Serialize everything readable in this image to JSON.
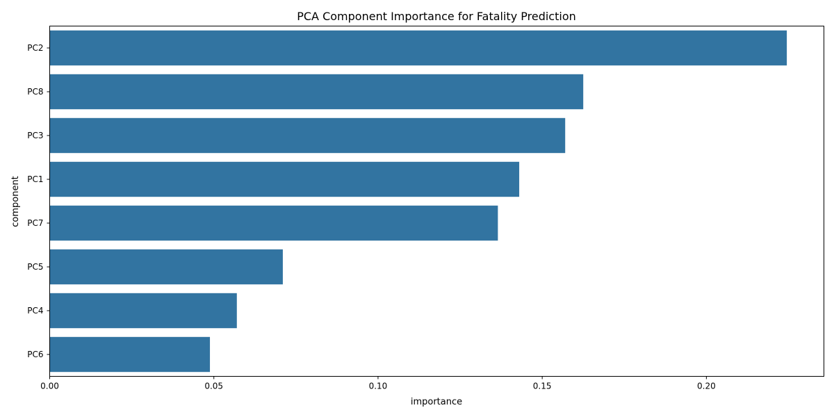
{
  "chart_data": {
    "type": "bar",
    "orientation": "horizontal",
    "title": "PCA Component Importance for Fatality Prediction",
    "xlabel": "importance",
    "ylabel": "component",
    "categories": [
      "PC2",
      "PC8",
      "PC3",
      "PC1",
      "PC7",
      "PC5",
      "PC4",
      "PC6"
    ],
    "values": [
      0.2245,
      0.1625,
      0.157,
      0.143,
      0.1365,
      0.071,
      0.057,
      0.0488
    ],
    "xlim": [
      0,
      0.2358
    ],
    "xticks": [
      0.0,
      0.05,
      0.1,
      0.15,
      0.2
    ],
    "xtick_labels": [
      "0.00",
      "0.05",
      "0.10",
      "0.15",
      "0.20"
    ],
    "grid": false,
    "bar_color": "#3274a1"
  }
}
